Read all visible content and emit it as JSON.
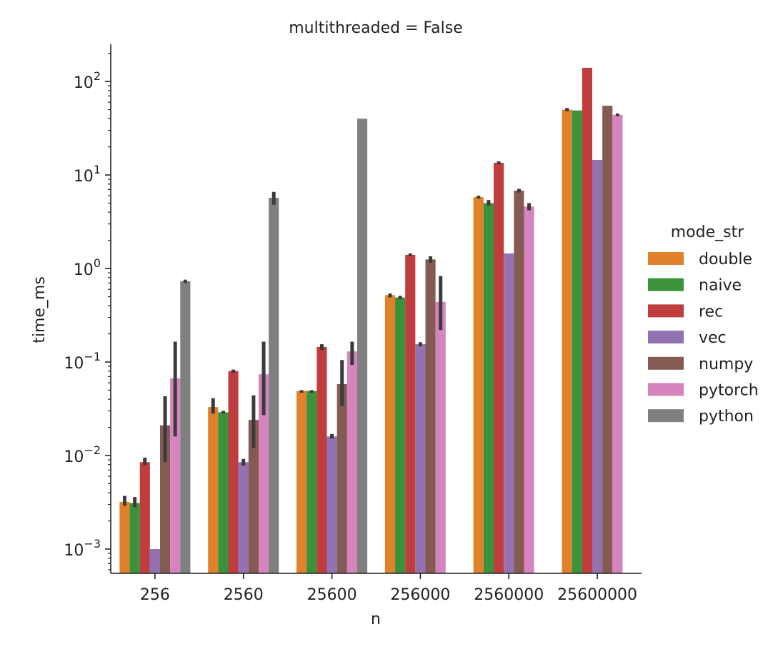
{
  "chart_data": {
    "type": "bar",
    "title": "multithreaded = False",
    "xlabel": "n",
    "ylabel": "time_ms",
    "yscale": "log",
    "ylim": [
      0.00055,
      250
    ],
    "yticks": [
      0.001,
      0.01,
      0.1,
      1,
      10,
      100
    ],
    "ytick_labels": [
      {
        "base": "10",
        "exp": "−3"
      },
      {
        "base": "10",
        "exp": "−2"
      },
      {
        "base": "10",
        "exp": "−1"
      },
      {
        "base": "10",
        "exp": "0"
      },
      {
        "base": "10",
        "exp": "1"
      },
      {
        "base": "10",
        "exp": "2"
      }
    ],
    "categories": [
      "256",
      "2560",
      "25600",
      "256000",
      "2560000",
      "25600000"
    ],
    "legend": {
      "title": "mode_str",
      "placement": "right"
    },
    "grid": false,
    "series": [
      {
        "name": "double",
        "color": "#e1812c",
        "values": [
          0.0032,
          0.033,
          0.049,
          0.52,
          5.8,
          50
        ],
        "err": [
          [
            0.0029,
            0.0037
          ],
          [
            0.028,
            0.041
          ],
          [
            0.047,
            0.05
          ],
          [
            0.49,
            0.54
          ],
          [
            5.6,
            6.0
          ],
          [
            48,
            52
          ]
        ]
      },
      {
        "name": "naive",
        "color": "#3a923a",
        "values": [
          0.0031,
          0.029,
          0.049,
          0.49,
          5.0,
          49
        ],
        "err": [
          [
            0.0028,
            0.0036
          ],
          [
            0.028,
            0.03
          ],
          [
            0.047,
            0.05
          ],
          [
            0.47,
            0.51
          ],
          [
            4.7,
            5.4
          ],
          [
            null,
            null
          ]
        ]
      },
      {
        "name": "rec",
        "color": "#c03d3e",
        "values": [
          0.0085,
          0.08,
          0.145,
          1.4,
          13.5,
          140
        ],
        "err": [
          [
            0.0079,
            0.0095
          ],
          [
            0.077,
            0.083
          ],
          [
            0.135,
            0.155
          ],
          [
            1.35,
            1.45
          ],
          [
            13.0,
            14.0
          ],
          [
            null,
            null
          ]
        ]
      },
      {
        "name": "vec",
        "color": "#9372b2",
        "values": [
          0.001,
          0.0085,
          0.016,
          0.155,
          1.45,
          14.5
        ],
        "err": [
          [
            null,
            null
          ],
          [
            0.0078,
            0.0092
          ],
          [
            0.0152,
            0.017
          ],
          [
            0.147,
            0.163
          ],
          [
            null,
            null
          ],
          [
            null,
            null
          ]
        ]
      },
      {
        "name": "numpy",
        "color": "#845b53",
        "values": [
          0.021,
          0.024,
          0.058,
          1.25,
          6.8,
          55
        ],
        "err": [
          [
            0.0085,
            0.043
          ],
          [
            0.012,
            0.044
          ],
          [
            0.034,
            0.105
          ],
          [
            1.15,
            1.35
          ],
          [
            6.5,
            7.1
          ],
          [
            null,
            null
          ]
        ]
      },
      {
        "name": "pytorch",
        "color": "#d684bd",
        "values": [
          0.067,
          0.074,
          0.13,
          0.44,
          4.6,
          44
        ],
        "err": [
          [
            0.016,
            0.165
          ],
          [
            0.027,
            0.165
          ],
          [
            0.093,
            0.165
          ],
          [
            0.22,
            0.83
          ],
          [
            4.2,
            5.0
          ],
          [
            42.5,
            45.5
          ]
        ]
      },
      {
        "name": "python",
        "color": "#7f7f7f",
        "values": [
          0.73,
          5.7,
          40,
          null,
          null,
          null
        ],
        "err": [
          [
            0.7,
            0.76
          ],
          [
            4.8,
            6.6
          ],
          [
            null,
            null
          ],
          [
            null,
            null
          ],
          [
            null,
            null
          ],
          [
            null,
            null
          ]
        ]
      }
    ]
  }
}
